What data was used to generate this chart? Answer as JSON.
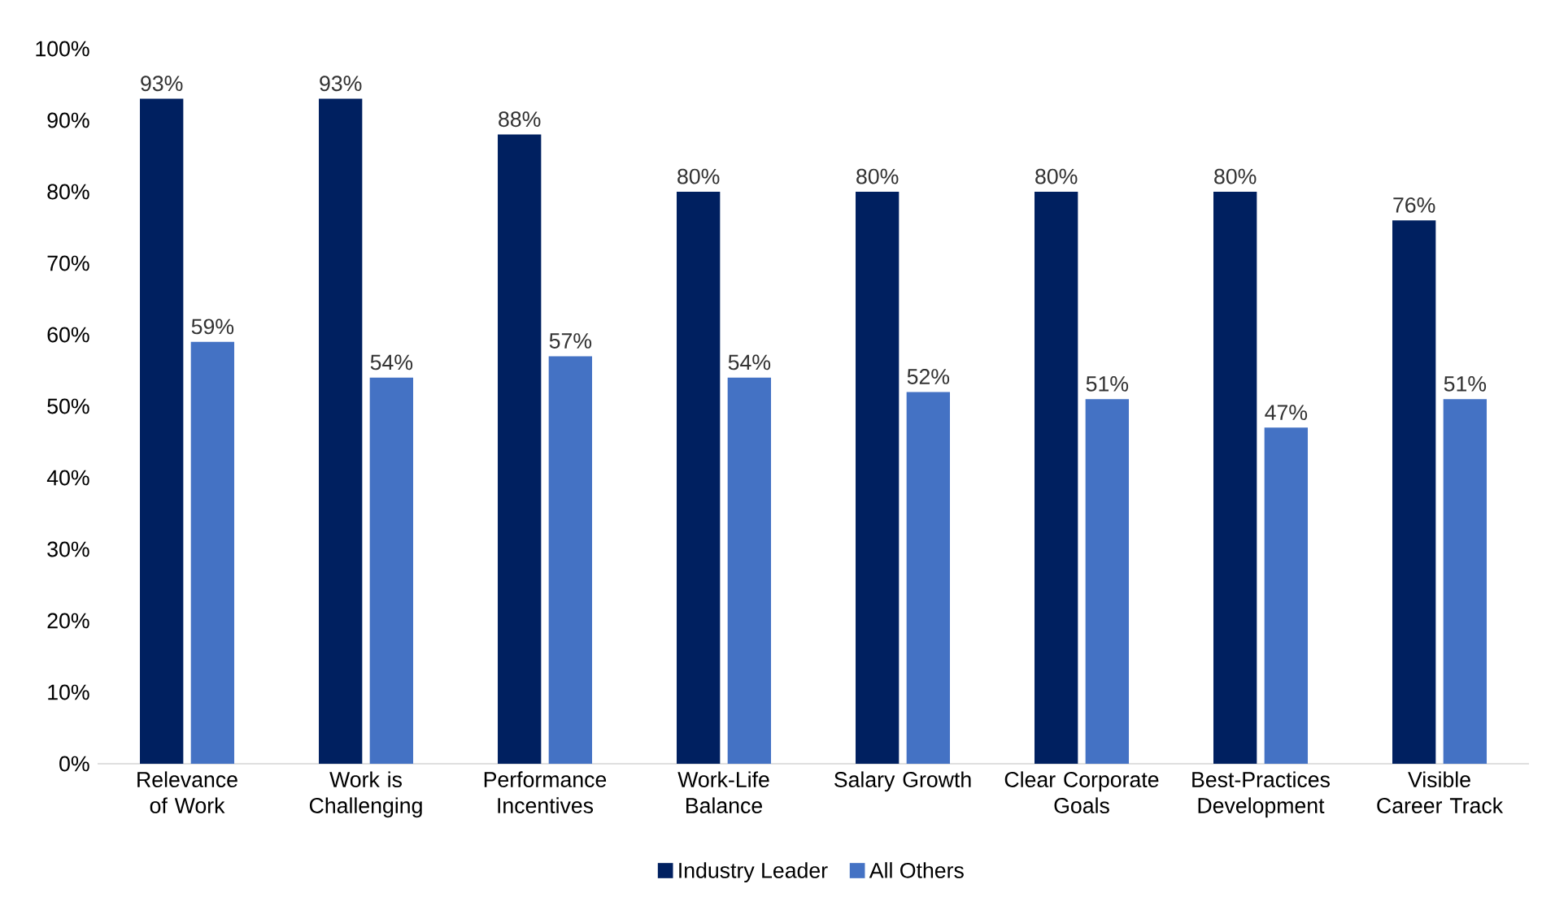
{
  "chart_data": {
    "type": "bar",
    "categories": [
      "Relevance of Work",
      "Work is Challenging",
      "Performance Incentives",
      "Work-Life Balance",
      "Salary Growth",
      "Clear Corporate Goals",
      "Best-Practices Development",
      "Visible Career Track"
    ],
    "series": [
      {
        "name": "Industry Leader",
        "color": "#002060",
        "values": [
          93,
          93,
          88,
          80,
          80,
          80,
          80,
          76
        ],
        "value_labels": [
          "93%",
          "93%",
          "88%",
          "80%",
          "80%",
          "80%",
          "80%",
          "76%"
        ]
      },
      {
        "name": "All Others",
        "color": "#4472c4",
        "values": [
          59,
          54,
          57,
          54,
          52,
          51,
          47,
          51
        ],
        "value_labels": [
          "59%",
          "54%",
          "57%",
          "54%",
          "52%",
          "51%",
          "47%",
          "51%"
        ]
      }
    ],
    "ylim": [
      0,
      100
    ],
    "yticks": [
      {
        "value": 0,
        "label": "0%"
      },
      {
        "value": 10,
        "label": "10%"
      },
      {
        "value": 20,
        "label": "20%"
      },
      {
        "value": 30,
        "label": "30%"
      },
      {
        "value": 40,
        "label": "40%"
      },
      {
        "value": 50,
        "label": "50%"
      },
      {
        "value": 60,
        "label": "60%"
      },
      {
        "value": 70,
        "label": "70%"
      },
      {
        "value": 80,
        "label": "80%"
      },
      {
        "value": 90,
        "label": "90%"
      },
      {
        "value": 100,
        "label": "100%"
      }
    ],
    "legend": "bottom"
  }
}
